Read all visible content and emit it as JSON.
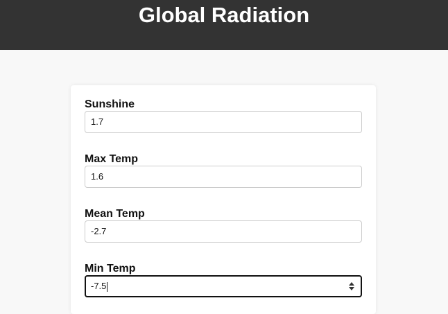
{
  "header": {
    "title": "Global Radiation"
  },
  "form": {
    "fields": [
      {
        "label": "Sunshine",
        "value": "1.7"
      },
      {
        "label": "Max Temp",
        "value": "1.6"
      },
      {
        "label": "Mean Temp",
        "value": "-2.7"
      },
      {
        "label": "Min Temp",
        "value": "-7.5"
      }
    ]
  },
  "colors": {
    "header_bg": "#333333",
    "page_bg": "#f8f8f8",
    "card_bg": "#ffffff",
    "input_border": "#cccccc",
    "focus_border": "#111111"
  },
  "icons": {
    "stepper": "spin-arrows-icon"
  }
}
